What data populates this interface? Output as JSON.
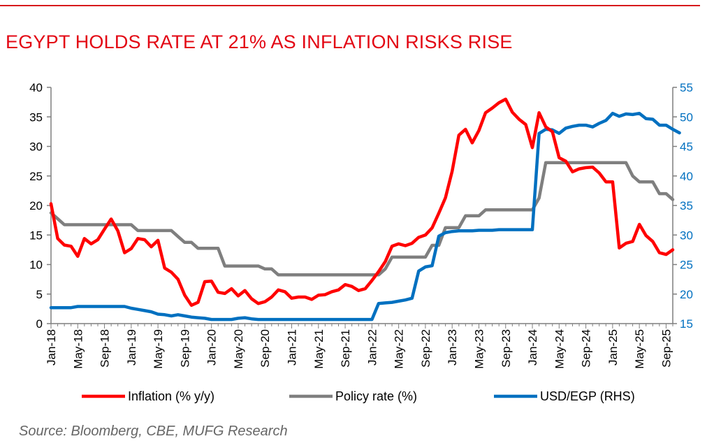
{
  "page": {
    "title": "EGYPT HOLDS RATE AT 21% AS INFLATION RISKS RISE",
    "source": "Source: Bloomberg, CBE, MUFG Research"
  },
  "colors": {
    "accent": "#e30613",
    "inflation": "#ff0000",
    "policy": "#7f7f7f",
    "usd": "#0070c0",
    "axis": "#7f7f7f"
  },
  "chart_data": {
    "type": "line",
    "title": "EGYPT HOLDS RATE AT 21% AS INFLATION RISKS RISE",
    "x_start": "Jan-18",
    "frequency": "monthly",
    "n_months": 94,
    "x_tick_labels": [
      "Jan-18",
      "May-18",
      "Sep-18",
      "Jan-19",
      "May-19",
      "Sep-19",
      "Jan-20",
      "May-20",
      "Sep-20",
      "Jan-21",
      "May-21",
      "Sep-21",
      "Jan-22",
      "May-22",
      "Sep-22",
      "Jan-23",
      "May-23",
      "Sep-23",
      "Jan-24",
      "May-24",
      "Sep-24",
      "Jan-25",
      "May-25",
      "Sep-25"
    ],
    "y_left": {
      "min": 0,
      "max": 40,
      "ticks": [
        "0",
        "5",
        "10",
        "15",
        "20",
        "25",
        "30",
        "35",
        "40"
      ]
    },
    "y_right": {
      "min": 15,
      "max": 55,
      "ticks": [
        "15",
        "20",
        "25",
        "30",
        "35",
        "40",
        "45",
        "50",
        "55"
      ]
    },
    "series": [
      {
        "name": "Inflation (% y/y)",
        "axis": "left",
        "color": "#ff0000",
        "values": [
          20.3,
          14.4,
          13.3,
          13.1,
          11.4,
          14.4,
          13.5,
          14.2,
          16.0,
          17.7,
          15.7,
          12.0,
          12.7,
          14.4,
          14.2,
          13.0,
          14.1,
          9.4,
          8.7,
          7.5,
          4.8,
          3.1,
          3.6,
          7.1,
          7.2,
          5.3,
          5.1,
          5.9,
          4.7,
          5.6,
          4.2,
          3.4,
          3.7,
          4.5,
          5.7,
          5.4,
          4.3,
          4.5,
          4.5,
          4.1,
          4.8,
          4.9,
          5.4,
          5.7,
          6.6,
          6.3,
          5.6,
          5.9,
          7.3,
          8.8,
          10.5,
          13.1,
          13.5,
          13.2,
          13.6,
          14.6,
          15.0,
          16.2,
          18.7,
          21.3,
          25.8,
          31.9,
          32.9,
          30.6,
          32.7,
          35.7,
          36.5,
          37.4,
          38.0,
          35.8,
          34.6,
          33.7,
          29.8,
          35.7,
          33.3,
          32.5,
          28.1,
          27.5,
          25.7,
          26.2,
          26.4,
          26.5,
          25.5,
          24.0,
          24.0,
          12.8,
          13.6,
          13.9,
          16.8,
          14.9,
          13.9,
          12.0,
          11.7,
          12.5
        ]
      },
      {
        "name": "Policy rate (%)",
        "axis": "left",
        "color": "#7f7f7f",
        "values": [
          18.75,
          17.75,
          16.75,
          16.75,
          16.75,
          16.75,
          16.75,
          16.75,
          16.75,
          16.75,
          16.75,
          16.75,
          16.75,
          15.75,
          15.75,
          15.75,
          15.75,
          15.75,
          15.75,
          14.75,
          13.75,
          13.75,
          12.75,
          12.75,
          12.75,
          12.75,
          9.75,
          9.75,
          9.75,
          9.75,
          9.75,
          9.75,
          9.25,
          9.25,
          8.25,
          8.25,
          8.25,
          8.25,
          8.25,
          8.25,
          8.25,
          8.25,
          8.25,
          8.25,
          8.25,
          8.25,
          8.25,
          8.25,
          8.25,
          8.25,
          9.25,
          11.25,
          11.25,
          11.25,
          11.25,
          11.25,
          11.25,
          13.25,
          13.25,
          16.25,
          16.25,
          16.25,
          18.25,
          18.25,
          18.25,
          19.25,
          19.25,
          19.25,
          19.25,
          19.25,
          19.25,
          19.25,
          19.25,
          21.25,
          27.25,
          27.25,
          27.25,
          27.25,
          27.25,
          27.25,
          27.25,
          27.25,
          27.25,
          27.25,
          27.25,
          27.25,
          27.25,
          25.0,
          24.0,
          24.0,
          24.0,
          22.0,
          22.0,
          21.0
        ]
      },
      {
        "name": "USD/EGP (RHS)",
        "axis": "right",
        "color": "#0070c0",
        "values": [
          17.7,
          17.7,
          17.7,
          17.7,
          17.9,
          17.9,
          17.9,
          17.9,
          17.9,
          17.9,
          17.9,
          17.9,
          17.6,
          17.4,
          17.2,
          17.0,
          16.6,
          16.5,
          16.3,
          16.5,
          16.3,
          16.1,
          16.0,
          15.9,
          15.7,
          15.7,
          15.7,
          15.7,
          15.9,
          16.0,
          15.8,
          15.7,
          15.7,
          15.7,
          15.7,
          15.7,
          15.7,
          15.7,
          15.7,
          15.7,
          15.7,
          15.7,
          15.7,
          15.7,
          15.7,
          15.7,
          15.7,
          15.7,
          15.7,
          18.4,
          18.5,
          18.6,
          18.8,
          19.0,
          19.3,
          23.9,
          24.6,
          24.8,
          29.8,
          30.4,
          30.6,
          30.7,
          30.7,
          30.7,
          30.8,
          30.8,
          30.8,
          30.9,
          30.9,
          30.9,
          30.9,
          30.9,
          30.9,
          47.2,
          47.9,
          47.8,
          47.2,
          48.1,
          48.4,
          48.6,
          48.6,
          48.3,
          48.9,
          49.4,
          50.6,
          50.1,
          50.5,
          50.4,
          50.6,
          49.7,
          49.6,
          48.6,
          48.6,
          47.9,
          47.3
        ]
      }
    ]
  }
}
